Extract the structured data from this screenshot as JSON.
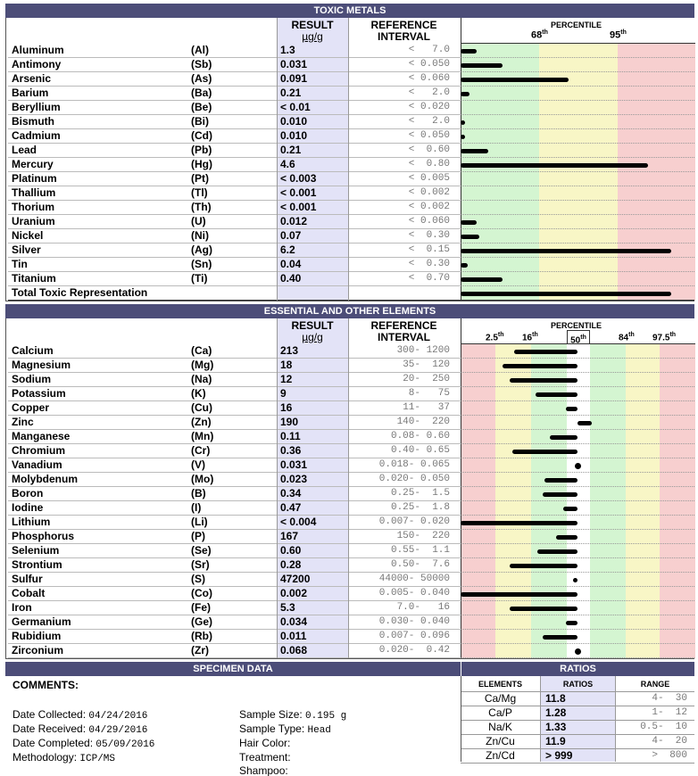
{
  "toxic": {
    "title": "TOXIC METALS",
    "result_header": "RESULT",
    "unit": "µg/g",
    "ref_header_1": "REFERENCE",
    "ref_header_2": "INTERVAL",
    "percentile_header": "PERCENTILE",
    "p68": "68",
    "p95": "95",
    "th": "th",
    "total_label": "Total Toxic Representation",
    "total_level": 0.9,
    "rows": [
      {
        "name": "Aluminum",
        "sym": "(Al)",
        "res": "1.3",
        "ref": "<   7.0",
        "level": 0.07
      },
      {
        "name": "Antimony",
        "sym": "(Sb)",
        "res": "0.031",
        "ref": "< 0.050",
        "level": 0.18
      },
      {
        "name": "Arsenic",
        "sym": "(As)",
        "res": "0.091",
        "ref": "< 0.060",
        "level": 0.46
      },
      {
        "name": "Barium",
        "sym": "(Ba)",
        "res": "0.21",
        "ref": "<   2.0",
        "level": 0.04
      },
      {
        "name": "Beryllium",
        "sym": "(Be)",
        "res": "< 0.01",
        "ref": "< 0.020",
        "level": 0
      },
      {
        "name": "Bismuth",
        "sym": "(Bi)",
        "res": "0.010",
        "ref": "<   2.0",
        "level": 0.02
      },
      {
        "name": "Cadmium",
        "sym": "(Cd)",
        "res": "0.010",
        "ref": "< 0.050",
        "level": 0.02
      },
      {
        "name": "Lead",
        "sym": "(Pb)",
        "res": "0.21",
        "ref": "<  0.60",
        "level": 0.12
      },
      {
        "name": "Mercury",
        "sym": "(Hg)",
        "res": "4.6",
        "ref": "<  0.80",
        "level": 0.8
      },
      {
        "name": "Platinum",
        "sym": "(Pt)",
        "res": "< 0.003",
        "ref": "< 0.005",
        "level": 0
      },
      {
        "name": "Thallium",
        "sym": "(Tl)",
        "res": "< 0.001",
        "ref": "< 0.002",
        "level": 0
      },
      {
        "name": "Thorium",
        "sym": "(Th)",
        "res": "< 0.001",
        "ref": "< 0.002",
        "level": 0
      },
      {
        "name": "Uranium",
        "sym": "(U)",
        "res": "0.012",
        "ref": "< 0.060",
        "level": 0.07
      },
      {
        "name": "Nickel",
        "sym": "(Ni)",
        "res": "0.07",
        "ref": "<  0.30",
        "level": 0.08
      },
      {
        "name": "Silver",
        "sym": "(Ag)",
        "res": "6.2",
        "ref": "<  0.15",
        "level": 0.9
      },
      {
        "name": "Tin",
        "sym": "(Sn)",
        "res": "0.04",
        "ref": "<  0.30",
        "level": 0.03
      },
      {
        "name": "Titanium",
        "sym": "(Ti)",
        "res": "0.40",
        "ref": "<  0.70",
        "level": 0.18
      }
    ]
  },
  "essential": {
    "title": "ESSENTIAL AND OTHER ELEMENTS",
    "result_header": "RESULT",
    "unit": "µg/g",
    "ref_header_1": "REFERENCE",
    "ref_header_2": "INTERVAL",
    "percentile_header": "PERCENTILE",
    "p2_5": "2.5",
    "p16": "16",
    "p50": "50",
    "p84": "84",
    "p97_5": "97.5",
    "th": "th",
    "rows": [
      {
        "name": "Calcium",
        "sym": "(Ca)",
        "res": "213",
        "ref": "300- 1200",
        "from": 0.23,
        "to": 0.5
      },
      {
        "name": "Magnesium",
        "sym": "(Mg)",
        "res": "18",
        "ref": "35-  120",
        "from": 0.18,
        "to": 0.5
      },
      {
        "name": "Sodium",
        "sym": "(Na)",
        "res": "12",
        "ref": "20-  250",
        "from": 0.21,
        "to": 0.5
      },
      {
        "name": "Potassium",
        "sym": "(K)",
        "res": "9",
        "ref": "8-   75",
        "from": 0.32,
        "to": 0.5
      },
      {
        "name": "Copper",
        "sym": "(Cu)",
        "res": "16",
        "ref": "11-   37",
        "from": 0.45,
        "to": 0.5
      },
      {
        "name": "Zinc",
        "sym": "(Zn)",
        "res": "190",
        "ref": "140-  220",
        "from": 0.5,
        "to": 0.56
      },
      {
        "name": "Manganese",
        "sym": "(Mn)",
        "res": "0.11",
        "ref": "0.08- 0.60",
        "from": 0.38,
        "to": 0.5
      },
      {
        "name": "Chromium",
        "sym": "(Cr)",
        "res": "0.36",
        "ref": "0.40- 0.65",
        "from": 0.22,
        "to": 0.5
      },
      {
        "name": "Vanadium",
        "sym": "(V)",
        "res": "0.031",
        "ref": "0.018- 0.065",
        "from": 0.5,
        "to": 0.5
      },
      {
        "name": "Molybdenum",
        "sym": "(Mo)",
        "res": "0.023",
        "ref": "0.020- 0.050",
        "from": 0.36,
        "to": 0.5
      },
      {
        "name": "Boron",
        "sym": "(B)",
        "res": "0.34",
        "ref": "0.25-  1.5",
        "from": 0.35,
        "to": 0.5
      },
      {
        "name": "Iodine",
        "sym": "(I)",
        "res": "0.47",
        "ref": "0.25-  1.8",
        "from": 0.44,
        "to": 0.5
      },
      {
        "name": "Lithium",
        "sym": "(Li)",
        "res": "< 0.004",
        "ref": "0.007- 0.020",
        "from": 0,
        "to": 0.5
      },
      {
        "name": "Phosphorus",
        "sym": "(P)",
        "res": "167",
        "ref": "150-  220",
        "from": 0.41,
        "to": 0.5
      },
      {
        "name": "Selenium",
        "sym": "(Se)",
        "res": "0.60",
        "ref": "0.55-  1.1",
        "from": 0.33,
        "to": 0.5
      },
      {
        "name": "Strontium",
        "sym": "(Sr)",
        "res": "0.28",
        "ref": "0.50-  7.6",
        "from": 0.21,
        "to": 0.5
      },
      {
        "name": "Sulfur",
        "sym": "(S)",
        "res": "47200",
        "ref": "44000- 50000",
        "from": 0.48,
        "to": 0.5
      },
      {
        "name": "Cobalt",
        "sym": "(Co)",
        "res": "0.002",
        "ref": "0.005- 0.040",
        "from": 0,
        "to": 0.5
      },
      {
        "name": "Iron",
        "sym": "(Fe)",
        "res": "5.3",
        "ref": "7.0-   16",
        "from": 0.21,
        "to": 0.5
      },
      {
        "name": "Germanium",
        "sym": "(Ge)",
        "res": "0.034",
        "ref": "0.030- 0.040",
        "from": 0.45,
        "to": 0.5
      },
      {
        "name": "Rubidium",
        "sym": "(Rb)",
        "res": "0.011",
        "ref": "0.007- 0.096",
        "from": 0.35,
        "to": 0.5
      },
      {
        "name": "Zirconium",
        "sym": "(Zr)",
        "res": "0.068",
        "ref": "0.020-  0.42",
        "from": 0.5,
        "to": 0.5
      }
    ]
  },
  "specimen": {
    "title": "SPECIMEN DATA",
    "comments_label": "COMMENTS:",
    "date_collected_label": "Date Collected:",
    "date_collected": "04/24/2016",
    "date_received_label": "Date Received:",
    "date_received": "04/29/2016",
    "date_completed_label": "Date Completed:",
    "date_completed": "05/09/2016",
    "methodology_label": "Methodology:",
    "methodology": "ICP/MS",
    "sample_size_label": "Sample Size:",
    "sample_size": "0.195 g",
    "sample_type_label": "Sample Type:",
    "sample_type": "Head",
    "hair_color_label": "Hair Color:",
    "treatment_label": "Treatment:",
    "shampoo_label": "Shampoo:"
  },
  "ratios": {
    "title": "RATIOS",
    "col_elements": "ELEMENTS",
    "col_ratios": "RATIOS",
    "col_range": "RANGE",
    "rows": [
      {
        "el": "Ca/Mg",
        "val": "11.8",
        "range": "4-  30"
      },
      {
        "el": "Ca/P",
        "val": "1.28",
        "range": "1-  12"
      },
      {
        "el": "Na/K",
        "val": "1.33",
        "range": "0.5-  10"
      },
      {
        "el": "Zn/Cu",
        "val": "11.9",
        "range": "4-  20"
      },
      {
        "el": "Zn/Cd",
        "val": "> 999",
        "range": ">  800"
      }
    ]
  },
  "colors": {
    "header_bg": "#4c4d78",
    "result_bg": "#e3e3f7",
    "green": "#d4f5d1",
    "yellow": "#f8f6c6",
    "red": "#f7cfcf"
  }
}
